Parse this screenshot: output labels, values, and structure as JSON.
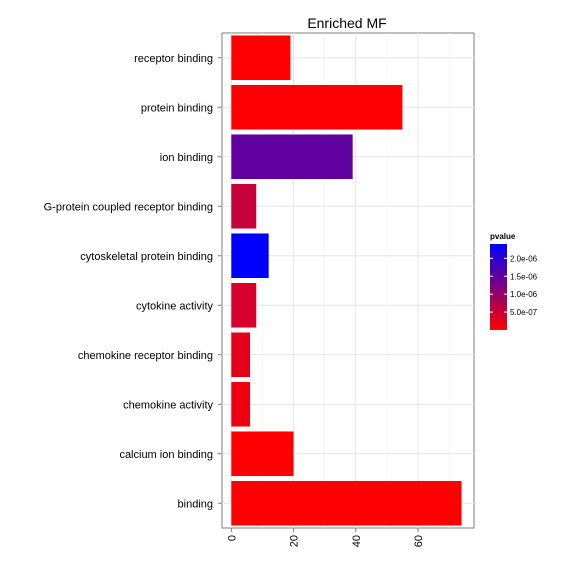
{
  "chart_data": {
    "type": "bar",
    "orientation": "horizontal",
    "title": "Enriched MF",
    "xlabel": "",
    "ylabel": "",
    "categories": [
      "receptor binding",
      "protein binding",
      "ion binding",
      "G-protein coupled receptor binding",
      "cytoskeletal protein binding",
      "cytokine activity",
      "chemokine receptor binding",
      "chemokine activity",
      "calcium ion binding",
      "binding"
    ],
    "values": [
      19,
      55,
      39,
      8,
      12,
      8,
      6,
      6,
      20,
      74
    ],
    "pvalues": [
      1e-08,
      1e-08,
      1.5e-06,
      5.5e-07,
      2.4e-06,
      4e-07,
      2.5e-07,
      1.5e-07,
      1e-08,
      1e-08
    ],
    "xlim": [
      -3,
      78
    ],
    "xticks": [
      0,
      20,
      40,
      60
    ],
    "xtick_labels": [
      "0",
      "20",
      "40",
      "60"
    ],
    "grid": true,
    "legend": {
      "title": "pvalue",
      "placement": "right",
      "breaks": [
        2e-06,
        1.5e-06,
        1e-06,
        5e-07
      ],
      "labels": [
        "2.0e-06",
        "1.5e-06",
        "1.0e-06",
        "5.0e-07"
      ],
      "min": 0,
      "max": 2.4e-06,
      "low_color": "#ff0000",
      "high_color": "#0000ff"
    }
  }
}
